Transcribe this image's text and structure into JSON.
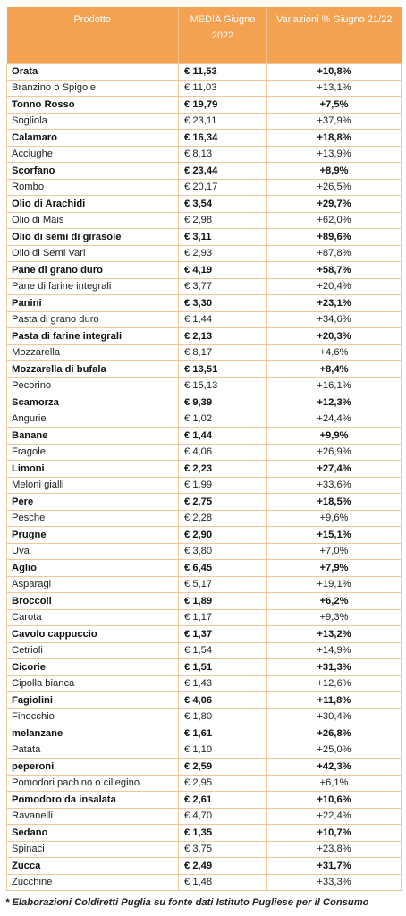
{
  "table": {
    "headers": [
      "Prodotto",
      "MEDIA Giugno 2022",
      "Variazioni % Giugno 21/22"
    ],
    "rows": [
      {
        "product": "Orata",
        "price": "€ 11,53",
        "change": "+10,8%",
        "bold": true
      },
      {
        "product": "Branzino o Spigole",
        "price": "€ 11,03",
        "change": "+13,1%",
        "bold": false
      },
      {
        "product": "Tonno Rosso",
        "price": "€ 19,79",
        "change": "+7,5%",
        "bold": true
      },
      {
        "product": "Sogliola",
        "price": "€ 23,11",
        "change": "+37,9%",
        "bold": false
      },
      {
        "product": "Calamaro",
        "price": "€ 16,34",
        "change": "+18,8%",
        "bold": true
      },
      {
        "product": "Acciughe",
        "price": "€ 8,13",
        "change": "+13,9%",
        "bold": false
      },
      {
        "product": "Scorfano",
        "price": "€ 23,44",
        "change": "+8,9%",
        "bold": true
      },
      {
        "product": "Rombo",
        "price": "€ 20,17",
        "change": "+26,5%",
        "bold": false
      },
      {
        "product": "Olio di Arachidi",
        "price": "€ 3,54",
        "change": "+29,7%",
        "bold": true
      },
      {
        "product": "Olio di Mais",
        "price": "€ 2,98",
        "change": "+62,0%",
        "bold": false
      },
      {
        "product": "Olio di semi di girasole",
        "price": "€ 3,11",
        "change": "+89,6%",
        "bold": true
      },
      {
        "product": "Olio di Semi Vari",
        "price": "€ 2,93",
        "change": "+87,8%",
        "bold": false
      },
      {
        "product": "Pane di grano duro",
        "price": "€ 4,19",
        "change": "+58,7%",
        "bold": true
      },
      {
        "product": "Pane  di farine integrali",
        "price": "€ 3,77",
        "change": "+20,4%",
        "bold": false
      },
      {
        "product": "Panini",
        "price": "€ 3,30",
        "change": "+23,1%",
        "bold": true
      },
      {
        "product": "Pasta di grano duro",
        "price": "€ 1,44",
        "change": "+34,6%",
        "bold": false
      },
      {
        "product": "Pasta di farine integrali",
        "price": "€ 2,13",
        "change": "+20,3%",
        "bold": true
      },
      {
        "product": "Mozzarella",
        "price": "€ 8,17",
        "change": "+4,6%",
        "bold": false
      },
      {
        "product": "Mozzarella di bufala",
        "price": "€ 13,51",
        "change": "+8,4%",
        "bold": true
      },
      {
        "product": "Pecorino",
        "price": "€ 15,13",
        "change": "+16,1%",
        "bold": false
      },
      {
        "product": "Scamorza",
        "price": "€ 9,39",
        "change": "+12,3%",
        "bold": true
      },
      {
        "product": "Angurie",
        "price": "€ 1,02",
        "change": "+24,4%",
        "bold": false
      },
      {
        "product": "Banane",
        "price": "€ 1,44",
        "change": "+9,9%",
        "bold": true
      },
      {
        "product": "Fragole",
        "price": "€ 4,06",
        "change": "+26,9%",
        "bold": false
      },
      {
        "product": "Limoni",
        "price": "€ 2,23",
        "change": "+27,4%",
        "bold": true
      },
      {
        "product": "Meloni gialli",
        "price": "€ 1,99",
        "change": "+33,6%",
        "bold": false
      },
      {
        "product": "Pere",
        "price": "€ 2,75",
        "change": "+18,5%",
        "bold": true
      },
      {
        "product": "Pesche",
        "price": "€ 2,28",
        "change": "+9,6%",
        "bold": false
      },
      {
        "product": "Prugne",
        "price": "€ 2,90",
        "change": "+15,1%",
        "bold": true
      },
      {
        "product": "Uva",
        "price": "€ 3,80",
        "change": "+7,0%",
        "bold": false
      },
      {
        "product": "Aglio",
        "price": "€ 6,45",
        "change": "+7,9%",
        "bold": true
      },
      {
        "product": "Asparagi",
        "price": "€ 5,17",
        "change": "+19,1%",
        "bold": false
      },
      {
        "product": "Broccoli",
        "price": "€ 1,89",
        "change": "+6,2%",
        "bold": true
      },
      {
        "product": "Carota",
        "price": "€ 1,17",
        "change": "+9,3%",
        "bold": false
      },
      {
        "product": "Cavolo cappuccio",
        "price": "€ 1,37",
        "change": "+13,2%",
        "bold": true
      },
      {
        "product": "Cetrioli",
        "price": "€ 1,54",
        "change": "+14,9%",
        "bold": false
      },
      {
        "product": "Cicorie",
        "price": "€ 1,51",
        "change": "+31,3%",
        "bold": true
      },
      {
        "product": "Cipolla bianca",
        "price": "€ 1,43",
        "change": "+12,6%",
        "bold": false
      },
      {
        "product": "Fagiolini",
        "price": "€ 4,06",
        "change": "+11,8%",
        "bold": true
      },
      {
        "product": "Finocchio",
        "price": "€ 1,80",
        "change": "+30,4%",
        "bold": false
      },
      {
        "product": "melanzane",
        "price": "€ 1,61",
        "change": "+26,8%",
        "bold": true
      },
      {
        "product": "Patata",
        "price": "€ 1,10",
        "change": "+25,0%",
        "bold": false
      },
      {
        "product": "peperoni",
        "price": "€ 2,59",
        "change": "+42,3%",
        "bold": true
      },
      {
        "product": "Pomodori pachino o ciliegino",
        "price": "€ 2,95",
        "change": "+6,1%",
        "bold": false
      },
      {
        "product": "Pomodoro da insalata",
        "price": "€ 2,61",
        "change": "+10,6%",
        "bold": true
      },
      {
        "product": "Ravanelli",
        "price": "€ 4,70",
        "change": "+22,4%",
        "bold": false
      },
      {
        "product": "Sedano",
        "price": "€ 1,35",
        "change": "+10,7%",
        "bold": true
      },
      {
        "product": "Spinaci",
        "price": "€ 3,75",
        "change": "+23,8%",
        "bold": false
      },
      {
        "product": "Zucca",
        "price": "€ 2,49",
        "change": "+31,7%",
        "bold": true
      },
      {
        "product": "Zucchine",
        "price": "€ 1,48",
        "change": "+33,3%",
        "bold": false
      }
    ]
  },
  "footnote": "* Elaborazioni Coldiretti Puglia su fonte dati Istituto Pugliese per il Consumo",
  "colors": {
    "header_bg": "#f5a152",
    "grid": "#f3c79c"
  }
}
